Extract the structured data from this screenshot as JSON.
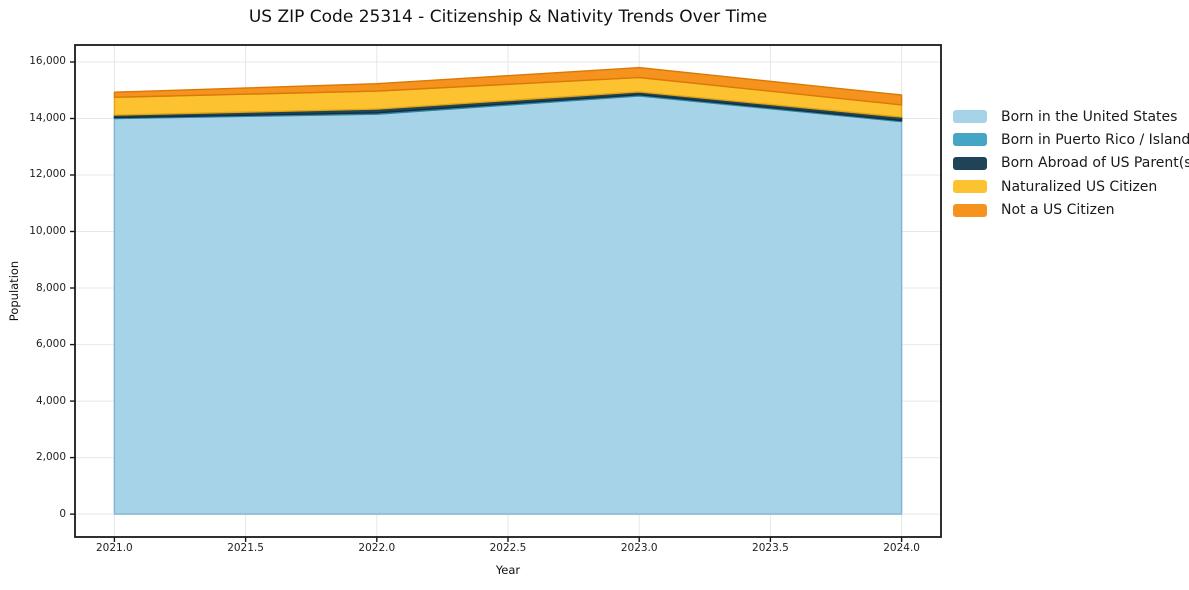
{
  "chart_data": {
    "type": "area",
    "stacked": true,
    "title": "US ZIP Code 25314 - Citizenship & Nativity Trends Over Time",
    "xlabel": "Year",
    "ylabel": "Population",
    "x": [
      2021,
      2022,
      2023,
      2024
    ],
    "series": [
      {
        "name": "Born in the United States",
        "values": [
          14000,
          14150,
          14800,
          13890
        ],
        "color": "#a7d3e8",
        "edge": "#7fb4d4"
      },
      {
        "name": "Born in Puerto Rico / Islands",
        "values": [
          30,
          50,
          40,
          40
        ],
        "color": "#45a5c5",
        "edge": "#2d85a3"
      },
      {
        "name": "Born Abroad of US Parent(s)",
        "values": [
          90,
          130,
          100,
          120
        ],
        "color": "#1f4458",
        "edge": "#132f3f"
      },
      {
        "name": "Naturalized US Citizen",
        "values": [
          630,
          640,
          510,
          430
        ],
        "color": "#fdc230",
        "edge": "#e3a612"
      },
      {
        "name": "Not a US Citizen",
        "values": [
          180,
          260,
          350,
          350
        ],
        "color": "#f6921e",
        "edge": "#d97908"
      }
    ],
    "cumulative_totals": [
      14930,
      15230,
      15800,
      14830
    ],
    "xticks": {
      "values": [
        2021.0,
        2021.5,
        2022.0,
        2022.5,
        2023.0,
        2023.5,
        2024.0
      ],
      "labels": [
        "2021.0",
        "2021.5",
        "2022.0",
        "2022.5",
        "2023.0",
        "2023.5",
        "2024.0"
      ]
    },
    "yticks": {
      "values": [
        0,
        2000,
        4000,
        6000,
        8000,
        10000,
        12000,
        14000,
        16000
      ],
      "labels": [
        "0",
        "2,000",
        "4,000",
        "6,000",
        "8,000",
        "10,000",
        "12,000",
        "14,000",
        "16,000"
      ]
    },
    "xlim": [
      2020.85,
      2024.15
    ],
    "ylim": [
      -810,
      16600
    ],
    "grid": true,
    "grid_color": "#e7e7e7",
    "spine_color": "#1a1a1a",
    "legend_position": "right-outside"
  }
}
